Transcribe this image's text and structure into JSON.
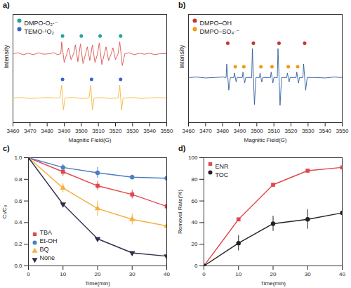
{
  "chart_data": [
    {
      "type": "line",
      "title": "a)",
      "x_label": "Magnitic Field(G)",
      "y_label": "Intensity",
      "xlim": [
        3460,
        3550
      ],
      "xticks": [
        3460,
        3470,
        3480,
        3490,
        3500,
        3510,
        3520,
        3530,
        3540,
        3550
      ],
      "ylim": [
        0,
        110
      ],
      "tick_labels": "x",
      "legend": "upper left",
      "series": [
        {
          "color": "#d9534f",
          "line_style": "solid",
          "x": [
            3460,
            3463,
            3466,
            3469,
            3472,
            3475,
            3478,
            3481,
            3484,
            3486,
            3488,
            3488.5,
            3490,
            3491.5,
            3492.5,
            3494,
            3495.5,
            3496.5,
            3498,
            3499.5,
            3501,
            3502.5,
            3503.5,
            3505,
            3506.5,
            3508,
            3509.5,
            3510.5,
            3512,
            3513.5,
            3514.5,
            3516,
            3517.5,
            3518.5,
            3520,
            3521.5,
            3522.5,
            3524,
            3525.5,
            3528,
            3531,
            3534,
            3537,
            3540,
            3543,
            3546,
            3550
          ],
          "values": [
            70,
            71,
            69,
            70.5,
            69,
            71,
            69.5,
            70,
            71,
            69,
            70,
            82,
            61,
            70,
            76,
            64,
            70,
            79,
            62,
            80,
            60,
            70,
            77,
            63,
            79,
            61,
            70,
            81,
            59,
            70,
            77,
            63,
            70,
            76,
            64,
            70,
            82,
            58,
            70,
            71,
            69,
            70.5,
            69.5,
            70.5,
            69,
            70,
            70
          ]
        },
        {
          "color": "#f0b93a",
          "line_style": "solid",
          "x": [
            3460,
            3465,
            3470,
            3475,
            3480,
            3485,
            3487.5,
            3488.5,
            3489.5,
            3490.5,
            3495,
            3500,
            3504.5,
            3505.5,
            3506.5,
            3507.5,
            3512,
            3517,
            3521.5,
            3522.5,
            3523.5,
            3524.5,
            3530,
            3535,
            3540,
            3545,
            3550
          ],
          "values": [
            25,
            25.5,
            24.5,
            25,
            25.5,
            25,
            25,
            38,
            13,
            25,
            25.5,
            24.5,
            25,
            38,
            13,
            25,
            25.5,
            24.5,
            25,
            38,
            13,
            25,
            25.5,
            24.5,
            25,
            25.5,
            25
          ]
        },
        {
          "name": "DMPO-O₂·⁻",
          "type": "scatter",
          "marker": "circle",
          "color": "#1fa39a",
          "x": [
            3489,
            3500,
            3511,
            3523
          ],
          "values": [
            88,
            88,
            88,
            88
          ]
        },
        {
          "name": "TEMO-¹O₂",
          "type": "scatter",
          "marker": "circle",
          "color": "#3a5fcd",
          "x": [
            3489,
            3506,
            3523
          ],
          "values": [
            44,
            44,
            44
          ]
        }
      ]
    },
    {
      "type": "line",
      "title": "b)",
      "x_label": "Magnitic Field(G)",
      "y_label": "Intensity",
      "xlim": [
        3460,
        3550
      ],
      "xticks": [
        3460,
        3470,
        3480,
        3490,
        3500,
        3510,
        3520,
        3530,
        3540,
        3550
      ],
      "ylim": [
        0,
        120
      ],
      "tick_labels": "x",
      "legend": "upper left",
      "series": [
        {
          "color": "#2f5d9e",
          "line_style": "solid",
          "x": [
            3460,
            3465,
            3470,
            3475,
            3480,
            3482,
            3482.4,
            3483.6,
            3484.5,
            3486.5,
            3486.9,
            3487.9,
            3488.5,
            3491.5,
            3491.9,
            3492.9,
            3493.5,
            3497,
            3497.4,
            3498.6,
            3499.5,
            3501.5,
            3501.9,
            3502.9,
            3503.5,
            3508,
            3508.4,
            3509.4,
            3510,
            3512,
            3512.4,
            3513.6,
            3514.5,
            3517.5,
            3517.9,
            3518.9,
            3519.5,
            3523,
            3523.4,
            3524.4,
            3525,
            3527,
            3527.4,
            3528.6,
            3529.5,
            3535,
            3540,
            3545,
            3550
          ],
          "values": [
            50,
            50.5,
            49.5,
            50,
            50.5,
            50,
            65,
            36,
            50,
            50,
            55,
            45,
            50,
            50,
            56,
            44,
            50,
            50,
            82,
            20,
            50,
            50,
            55,
            45,
            50,
            50,
            56,
            44,
            50,
            50,
            82,
            19,
            50,
            50,
            55,
            45,
            50,
            50,
            56,
            44,
            50,
            50,
            65,
            36,
            50,
            50,
            49.5,
            50.5,
            50
          ]
        },
        {
          "name": "DMPO–OH",
          "type": "scatter",
          "marker": "circle",
          "color": "#c0392b",
          "x": [
            3483,
            3498,
            3513,
            3528
          ],
          "values": [
            88,
            88,
            88,
            88
          ]
        },
        {
          "name": "DMPO–SO₄·⁻",
          "type": "scatter",
          "marker": "circle",
          "color": "#f39c12",
          "x": [
            3487.4,
            3492.4,
            3502.4,
            3508.9,
            3518.4,
            3523.9
          ],
          "values": [
            62,
            62,
            62,
            62,
            62,
            62
          ]
        }
      ]
    },
    {
      "type": "line",
      "title": "c)",
      "x_label": "Time(min)",
      "y_label": "Cₜ/C₀",
      "xlim": [
        0,
        40
      ],
      "xticks": [
        0,
        10,
        20,
        30,
        40
      ],
      "ylim": [
        0,
        1
      ],
      "yticks": [
        {
          "value": 0,
          "label": "0.0"
        },
        {
          "value": 0.2,
          "label": "0.2"
        },
        {
          "value": 0.4,
          "label": "0.4"
        },
        {
          "value": 0.6,
          "label": "0.6"
        },
        {
          "value": 0.8,
          "label": "0.8"
        },
        {
          "value": 1,
          "label": "1.0"
        }
      ],
      "legend": "lower left",
      "x": [
        0,
        10,
        20,
        30,
        40
      ],
      "series": [
        {
          "name": "TBA",
          "color": "#e0474c",
          "marker": "square",
          "line_style": "solid",
          "values": [
            1,
            0.87,
            0.74,
            0.66,
            0.55
          ],
          "errors": [
            null,
            0.04,
            0.04,
            0.04,
            0.05
          ]
        },
        {
          "name": "Et-OH",
          "color": "#4a7fc1",
          "marker": "circle",
          "line_style": "solid",
          "values": [
            1,
            0.91,
            0.86,
            0.82,
            0.81
          ],
          "errors": [
            null,
            0.03,
            0.05,
            0.02,
            0.05
          ]
        },
        {
          "name": "BQ",
          "color": "#f5b041",
          "marker": "triangle",
          "line_style": "solid",
          "values": [
            1,
            0.72,
            0.53,
            0.43,
            0.37
          ],
          "errors": [
            null,
            0.04,
            0.07,
            0.05,
            0.03
          ]
        },
        {
          "name": "None",
          "color": "#2c2f4a",
          "marker": "triangle-down",
          "line_style": "solid",
          "values": [
            1,
            0.57,
            0.25,
            0.12,
            0.09
          ]
        }
      ]
    },
    {
      "type": "line",
      "title": "d)",
      "x_label": "Time(min)",
      "y_label": "Removal Rate(%)",
      "xlim": [
        0,
        40
      ],
      "xticks": [
        0,
        10,
        20,
        30,
        40
      ],
      "ylim": [
        0,
        100
      ],
      "yticks": [
        0,
        20,
        40,
        60,
        80,
        100
      ],
      "legend": "upper left",
      "x": [
        0,
        10,
        20,
        30,
        40
      ],
      "series": [
        {
          "name": "ENR",
          "color": "#e0474c",
          "marker": "square",
          "line_style": "solid",
          "values": [
            0,
            43,
            75,
            88,
            91
          ],
          "errors": [
            null,
            1,
            1,
            1.5,
            2
          ]
        },
        {
          "name": "TOC",
          "color": "#222222",
          "marker": "circle",
          "line_style": "solid",
          "values": [
            0,
            21,
            39,
            43,
            49
          ],
          "errors": [
            null,
            7,
            7,
            9,
            6
          ]
        }
      ]
    }
  ]
}
